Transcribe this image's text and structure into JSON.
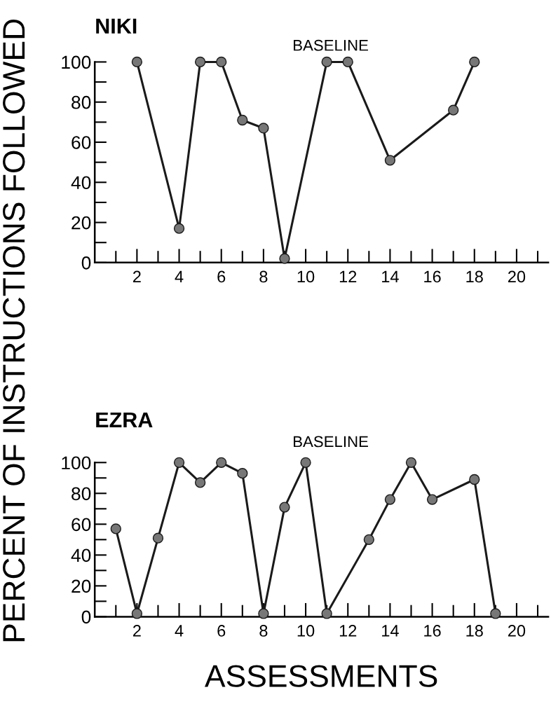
{
  "chart_data": [
    {
      "type": "line",
      "title": "NIKI",
      "ylabel": "PERCENT OF INSTRUCTIONS FOLLOWED",
      "annotations": [
        "BASELINE"
      ],
      "marker": "circle",
      "grid": false,
      "legend": false,
      "series": [
        {
          "color": "#1a1a1a",
          "x": [
            2,
            4,
            5,
            6,
            7,
            8,
            9,
            11,
            12,
            14,
            17,
            18
          ],
          "values": [
            100,
            17,
            100,
            100,
            71,
            67,
            2,
            100,
            100,
            51,
            76,
            100
          ]
        }
      ],
      "xlim": [
        0,
        21.5
      ],
      "xticks": [
        2,
        4,
        6,
        8,
        10,
        12,
        14,
        16,
        18,
        20
      ],
      "ylim": [
        0,
        100
      ],
      "yticks": [
        0,
        20,
        40,
        60,
        80,
        100
      ]
    },
    {
      "type": "line",
      "title": "EZRA",
      "xlabel": "ASSESSMENTS",
      "annotations": [
        "BASELINE"
      ],
      "marker": "circle",
      "grid": false,
      "legend": false,
      "series": [
        {
          "color": "#1a1a1a",
          "x": [
            1,
            2,
            3,
            4,
            5,
            6,
            7,
            8,
            9,
            10,
            11,
            13,
            14,
            15,
            16,
            18,
            19
          ],
          "values": [
            57,
            2,
            51,
            100,
            87,
            100,
            93,
            2,
            71,
            100,
            2,
            50,
            76,
            100,
            76,
            89,
            2
          ]
        }
      ],
      "xlim": [
        0,
        21.5
      ],
      "xticks": [
        2,
        4,
        6,
        8,
        10,
        12,
        14,
        16,
        18,
        20
      ],
      "ylim": [
        0,
        100
      ],
      "yticks": [
        0,
        20,
        40,
        60,
        80,
        100
      ]
    }
  ]
}
